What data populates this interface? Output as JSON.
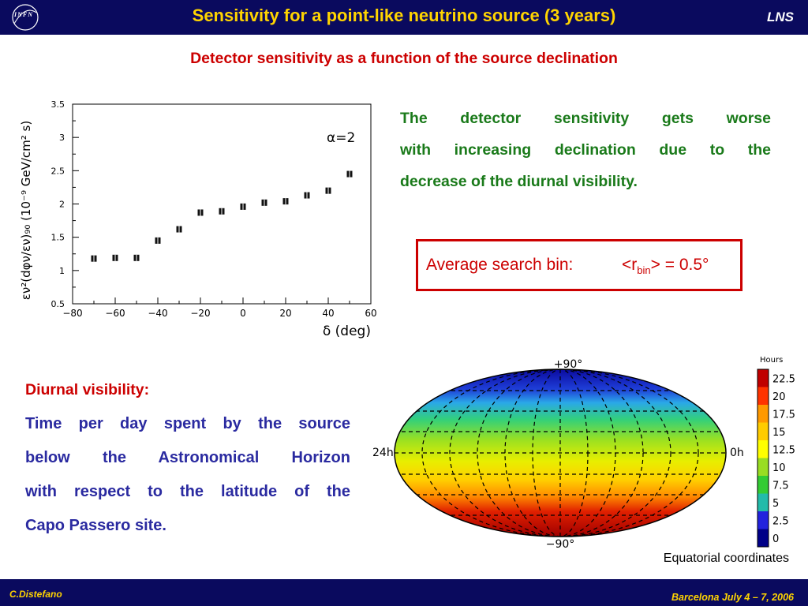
{
  "header": {
    "logo_text": "INFN",
    "title": "Sensitivity for a point-like neutrino source (3 years)",
    "right_label": "LNS"
  },
  "subtitle": "Detector sensitivity as a function of the source declination",
  "chart_data": {
    "type": "scatter",
    "xlabel": "δ (deg)",
    "ylabel": "εν²(dφν/εν)₉₀ (10⁻⁹ GeV/cm² s)",
    "annotation": "α=2",
    "xlim": [
      -80,
      60
    ],
    "ylim": [
      0.5,
      3.5
    ],
    "xticks": [
      "−80",
      "−60",
      "−40",
      "−20",
      "0",
      "20",
      "40",
      "60"
    ],
    "yticks": [
      "0.5",
      "1",
      "1.5",
      "2",
      "2.5",
      "3",
      "3.5"
    ],
    "x": [
      -70,
      -60,
      -50,
      -40,
      -30,
      -20,
      -10,
      0,
      10,
      20,
      30,
      40,
      50
    ],
    "y": [
      1.18,
      1.19,
      1.19,
      1.45,
      1.62,
      1.87,
      1.89,
      1.96,
      2.02,
      2.04,
      2.13,
      2.2,
      2.45
    ]
  },
  "paragraph_green": {
    "line1": "The detector sensitivity gets worse",
    "line2": "with increasing declination due to the",
    "line3": "decrease of the diurnal visibility."
  },
  "bin_box": {
    "label": "Average search bin:",
    "value_prefix": "<r",
    "value_sub": "bin",
    "value_suffix": "> = 0.5°"
  },
  "diurnal": {
    "title": "Diurnal visibility:",
    "line1": "Time per day spent by the source",
    "line2": "below the Astronomical Horizon",
    "line3": "with respect to the latitude of the",
    "line4": "Capo Passero site."
  },
  "skymap": {
    "top_label": "+90°",
    "bottom_label": "−90°",
    "left_label": "24h",
    "right_label": "0h",
    "caption": "Equatorial coordinates"
  },
  "colorbar": {
    "title": "Hours",
    "labels": [
      "22.5",
      "20",
      "17.5",
      "15",
      "12.5",
      "10",
      "7.5",
      "5",
      "2.5",
      "0"
    ],
    "colors": [
      "#c00000",
      "#ff3300",
      "#ff9900",
      "#ffcc00",
      "#ffff00",
      "#99dd22",
      "#33cc33",
      "#22bbaa",
      "#2222dd",
      "#000088"
    ]
  },
  "footer": {
    "left": "C.Distefano",
    "right": "Barcelona July 4 – 7, 2006"
  }
}
